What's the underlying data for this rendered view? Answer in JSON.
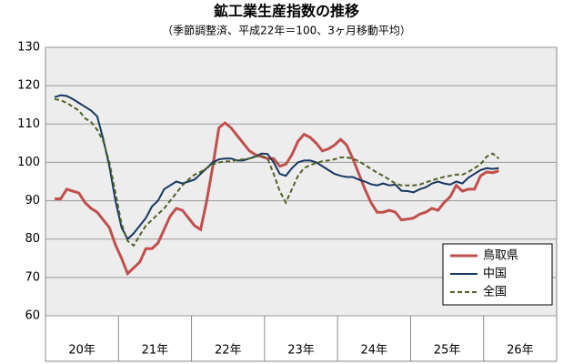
{
  "chart_data": {
    "type": "line",
    "title": "鉱工業生産指数の推移",
    "subtitle": "（季節調整済、平成22年＝100、3ヶ月移動平均）",
    "categories": [
      "20年",
      null,
      null,
      null,
      null,
      null,
      null,
      null,
      null,
      null,
      null,
      null,
      "21年",
      null,
      null,
      null,
      null,
      null,
      null,
      null,
      null,
      null,
      null,
      null,
      "22年",
      null,
      null,
      null,
      null,
      null,
      null,
      null,
      null,
      null,
      null,
      null,
      "23年",
      null,
      null,
      null,
      null,
      null,
      null,
      null,
      null,
      null,
      null,
      null,
      "24年",
      null,
      null,
      null,
      null,
      null,
      null,
      null,
      null,
      null,
      null,
      null,
      "25年",
      null,
      null,
      null,
      null,
      null,
      null,
      null,
      null,
      null,
      null,
      null,
      "26年",
      null,
      null,
      null,
      null,
      null,
      null,
      null,
      null,
      null,
      null,
      null
    ],
    "series": [
      {
        "name": "鳥取県",
        "color": "#c0504d",
        "dash": false,
        "values": [
          null,
          90.5,
          90.5,
          93,
          92.5,
          92,
          89.5,
          88,
          87,
          85,
          83,
          78.5,
          75,
          71,
          72.5,
          74,
          77.5,
          77.5,
          79,
          82.5,
          86,
          88,
          87.5,
          85.5,
          83.5,
          82.5,
          90,
          99,
          109,
          110.3,
          109,
          107,
          105,
          103,
          102,
          101.5,
          101,
          101,
          99,
          99.5,
          102,
          105.5,
          107.3,
          106.5,
          105,
          103,
          103.5,
          104.5,
          106,
          104.5,
          101,
          97,
          93,
          89.5,
          87,
          87,
          87.5,
          87,
          85,
          85.2,
          85.5,
          86.5,
          87,
          88,
          87.5,
          89.5,
          91,
          94,
          92.5,
          93,
          93,
          96.5,
          97.5,
          97.3,
          97.8,
          null,
          null,
          null,
          null,
          null,
          null,
          null,
          null,
          null
        ]
      },
      {
        "name": "中国",
        "color": "#17375e",
        "dash": false,
        "values": [
          null,
          117,
          117.5,
          117.3,
          116.5,
          115.5,
          114.5,
          113.5,
          112,
          106,
          99,
          90,
          83,
          80,
          81.5,
          83.5,
          85.5,
          88.5,
          90,
          93,
          94,
          95,
          94.5,
          95,
          95.5,
          97,
          98.5,
          100,
          100.8,
          101,
          101,
          100.5,
          100.5,
          101,
          101.5,
          102.3,
          102.2,
          100,
          97,
          96.5,
          98.5,
          100,
          100.5,
          100.5,
          100,
          99,
          98,
          97,
          96.5,
          96.2,
          96.2,
          95.5,
          95,
          94.3,
          94,
          94.5,
          94,
          94.2,
          92.6,
          92.5,
          92.2,
          93,
          93.5,
          94.5,
          95,
          94.5,
          94.2,
          95,
          94.5,
          96,
          97,
          98,
          98.5,
          98.3,
          98.5,
          null,
          null,
          null,
          null,
          null,
          null,
          null,
          null,
          null
        ]
      },
      {
        "name": "全国",
        "color": "#4f6228",
        "dash": true,
        "values": [
          null,
          116.5,
          116.2,
          115.5,
          114.5,
          113.5,
          111.5,
          110.5,
          108.5,
          105.5,
          100,
          92,
          84,
          79.5,
          78.3,
          81,
          83.5,
          85,
          86.5,
          88,
          90,
          92,
          94,
          95.5,
          96.8,
          97.5,
          98.5,
          99.5,
          100,
          100.2,
          100.3,
          100.6,
          100.8,
          101,
          101.5,
          101.7,
          101,
          97,
          92.5,
          89.5,
          93,
          96.5,
          98.5,
          99.3,
          99.8,
          100.3,
          100.5,
          100.8,
          101.3,
          101.3,
          101,
          100.3,
          99.3,
          98.3,
          97.3,
          96.5,
          95.5,
          94.5,
          94,
          94,
          94,
          94.2,
          94.8,
          95.3,
          95.8,
          96.2,
          96.5,
          96.8,
          96.8,
          97.5,
          98.5,
          99.5,
          101.5,
          102.3,
          101,
          null,
          null,
          null,
          null,
          null,
          null,
          null,
          null,
          null
        ]
      }
    ],
    "ylim": [
      60,
      130
    ],
    "yticks": [
      60,
      70,
      80,
      90,
      100,
      110,
      120,
      130
    ],
    "grid": true,
    "legend": "lower-right"
  }
}
